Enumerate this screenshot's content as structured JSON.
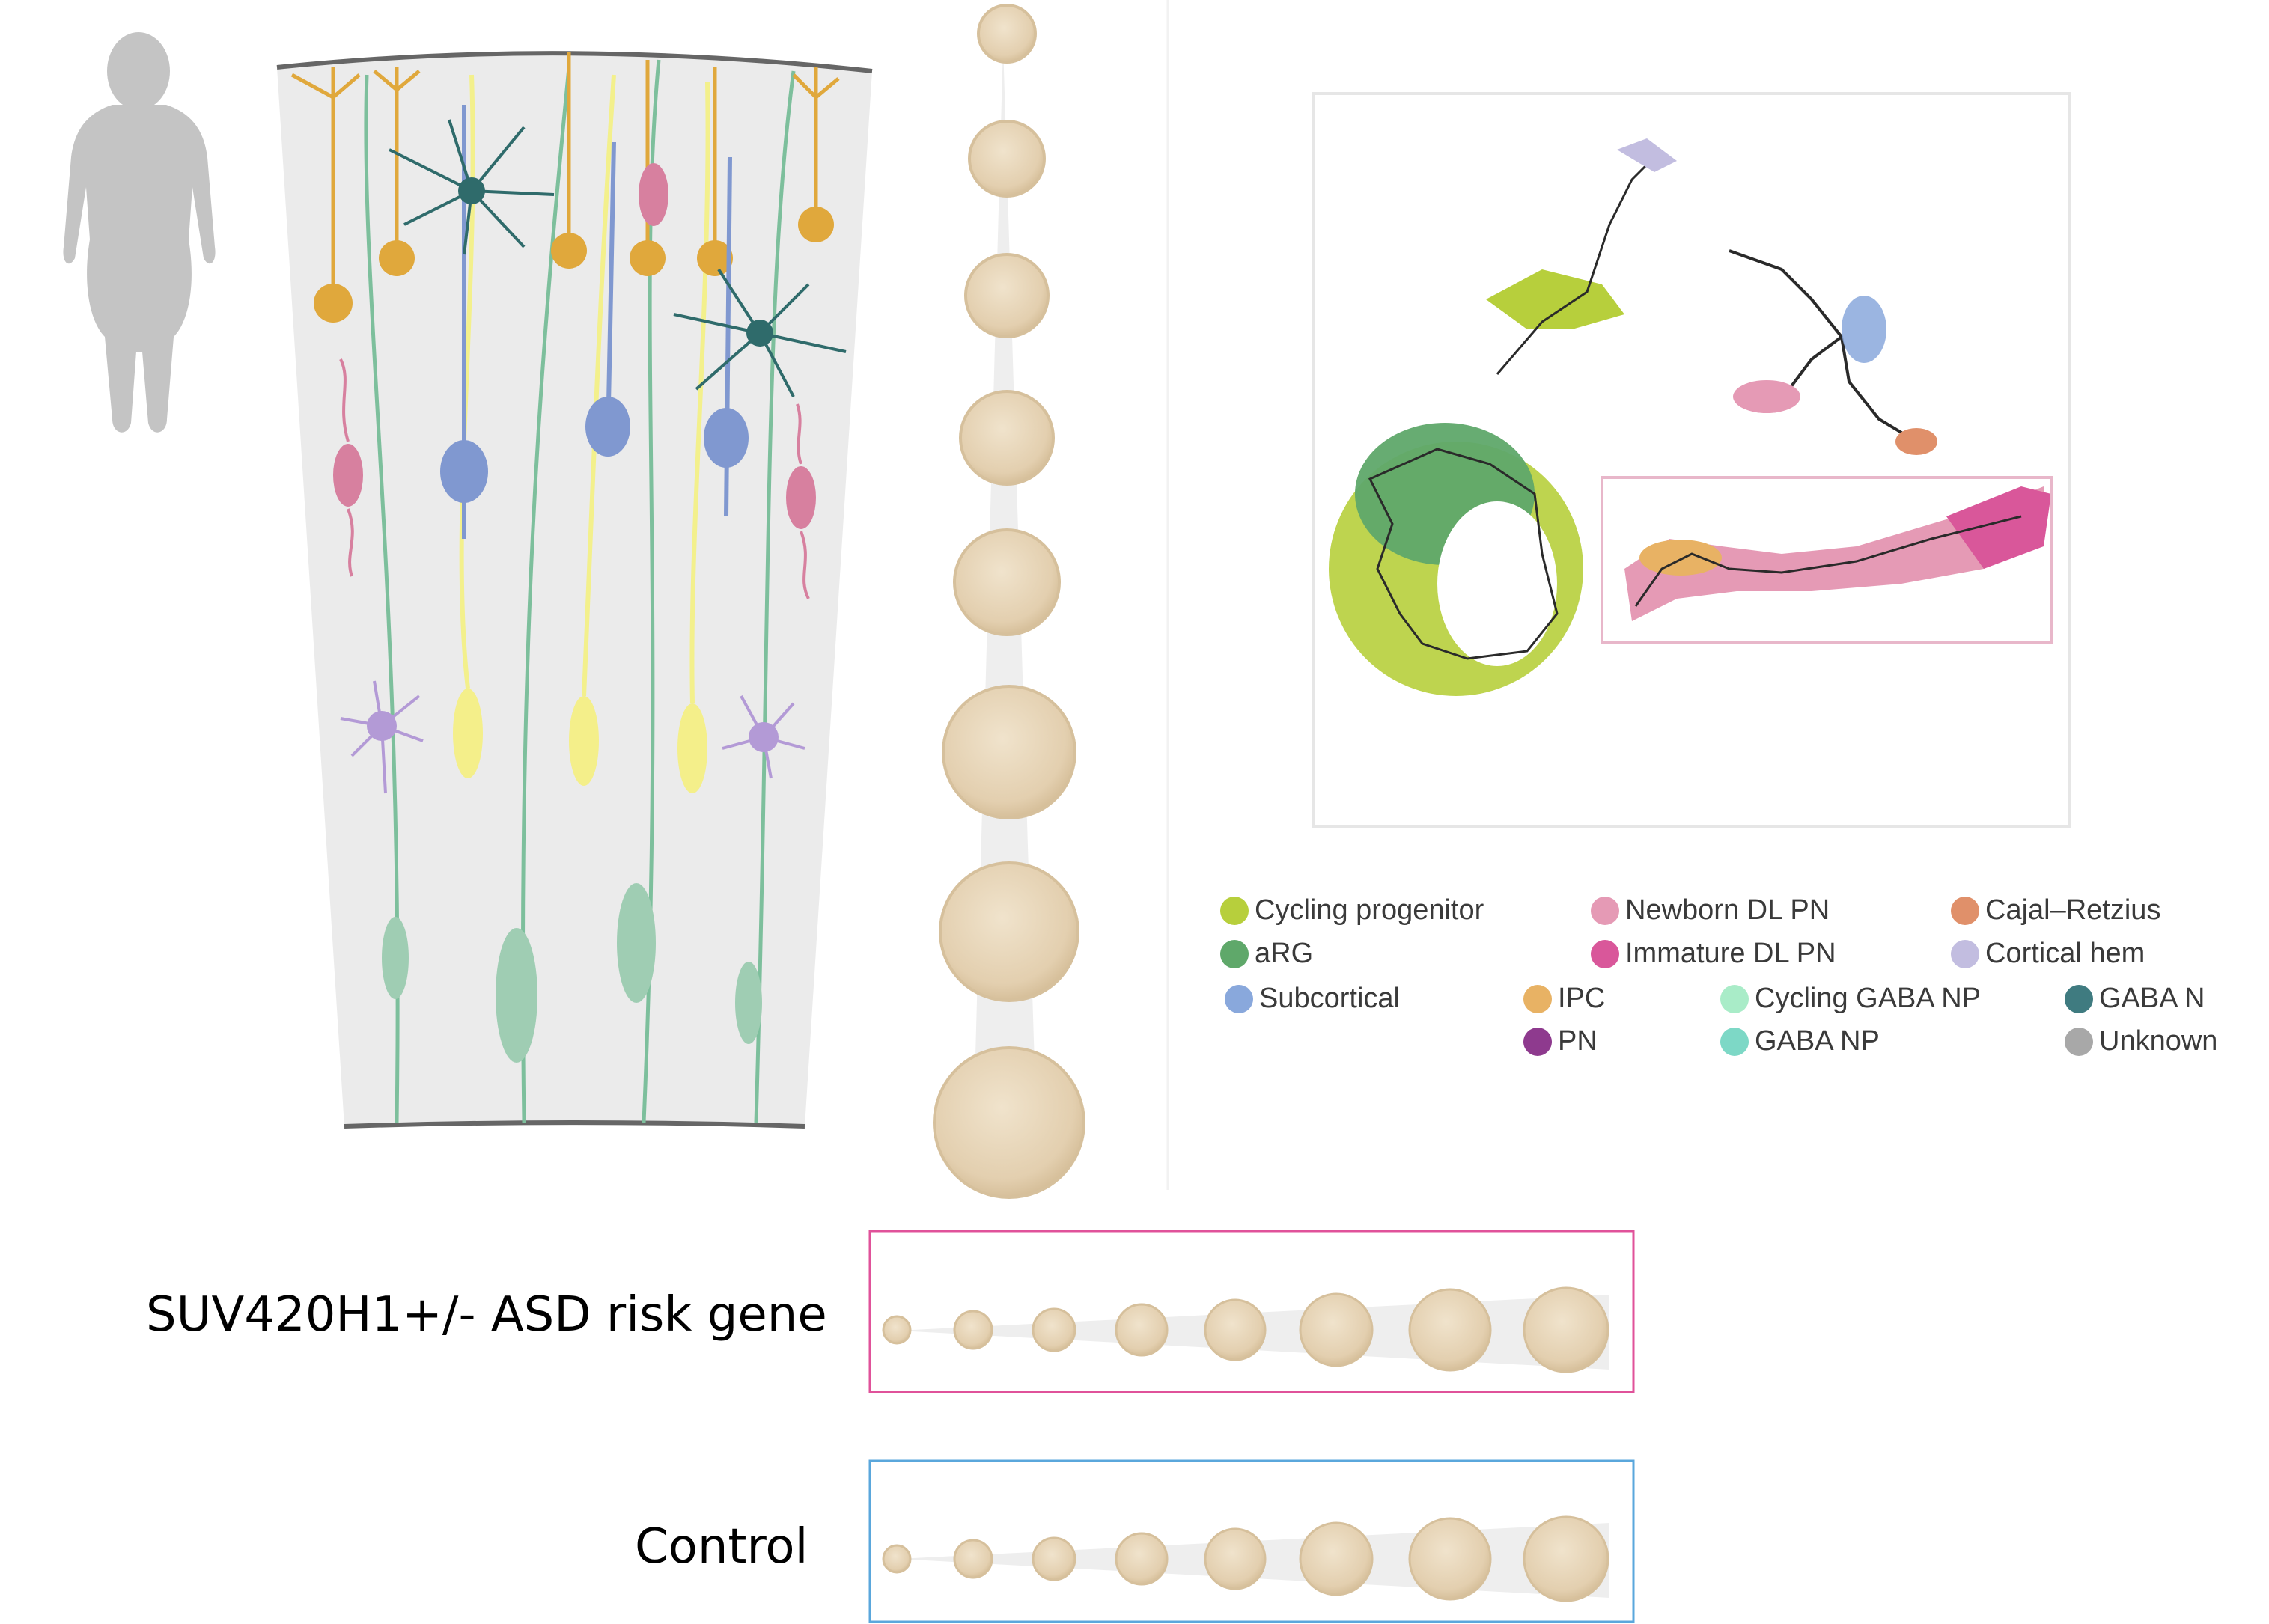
{
  "labels": {
    "asd": "SUV420H1+/-  ASD risk gene",
    "control": "Control"
  },
  "legend": [
    {
      "label": "Cycling progenitor",
      "color": "#b7cf3c"
    },
    {
      "label": "aRG",
      "color": "#5fa86a"
    },
    {
      "label": "Subcortical",
      "color": "#89a8dc"
    },
    {
      "label": "Newborn DL PN",
      "color": "#e59ab5"
    },
    {
      "label": "Immature DL PN",
      "color": "#d9579a"
    },
    {
      "label": "IPC",
      "color": "#e8b264"
    },
    {
      "label": "PN",
      "color": "#8e3a8e"
    },
    {
      "label": "Cycling GABA NP",
      "color": "#a9ecc8"
    },
    {
      "label": "GABA NP",
      "color": "#7dd8c6"
    },
    {
      "label": "Cajal–Retzius",
      "color": "#e0906a"
    },
    {
      "label": "Cortical hem",
      "color": "#c2bde0"
    },
    {
      "label": "GABA N",
      "color": "#3f7b80"
    },
    {
      "label": "Unknown",
      "color": "#a8a8a8"
    }
  ],
  "colors": {
    "asd_box": "#e0529a",
    "control_box": "#5aa7dc",
    "organoid": "#e6d5b8",
    "organoid_edge": "#d8c4a2",
    "tissue_bg": "#eaeaea",
    "silhouette": "#c4c4c4"
  }
}
